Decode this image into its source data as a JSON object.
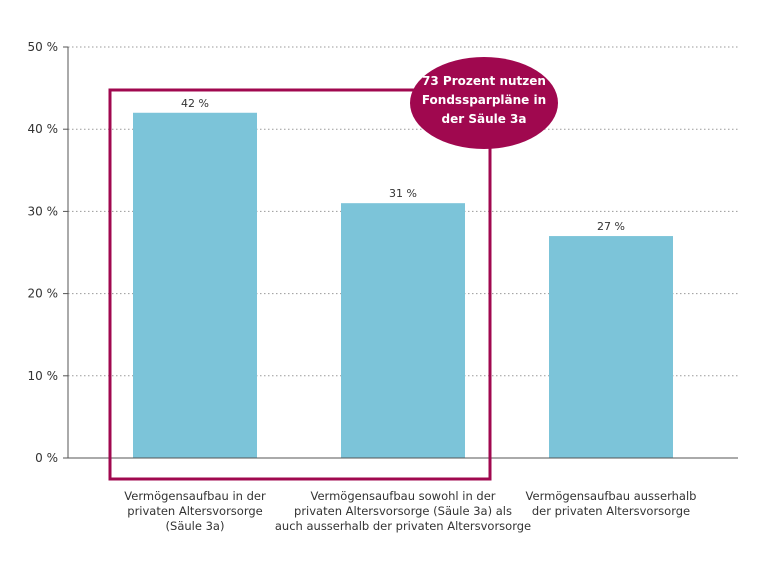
{
  "chart_data": {
    "type": "bar",
    "categories": [
      [
        "Vermögensaufbau in der",
        "privaten Altersvorsorge",
        "(Säule 3a)"
      ],
      [
        "Vermögensaufbau sowohl in der",
        "privaten Altersvorsorge (Säule 3a) als",
        "auch ausserhalb der privaten Altersvorsorge"
      ],
      [
        "Vermögensaufbau ausserhalb",
        "der privaten Altersvorsorge"
      ]
    ],
    "values": [
      42,
      31,
      27
    ],
    "value_labels": [
      "42 %",
      "31 %",
      "27 %"
    ],
    "ylim": [
      0,
      50
    ],
    "yticks": [
      0,
      10,
      20,
      30,
      40,
      50
    ],
    "ytick_labels": [
      "0 %",
      "10 %",
      "20 %",
      "30 %",
      "40 %",
      "50 %"
    ],
    "grid": true,
    "title": "",
    "xlabel": "",
    "ylabel": "",
    "highlight": {
      "covers_categories": [
        0,
        1
      ],
      "callout_lines": [
        "73 Prozent nutzen",
        "Fondssparpläne in",
        "der Säule 3a"
      ]
    }
  },
  "colors": {
    "bar": "#7cc4d9",
    "accent": "#a0084f",
    "grid": "#9a9a9a",
    "axis": "#555555"
  }
}
